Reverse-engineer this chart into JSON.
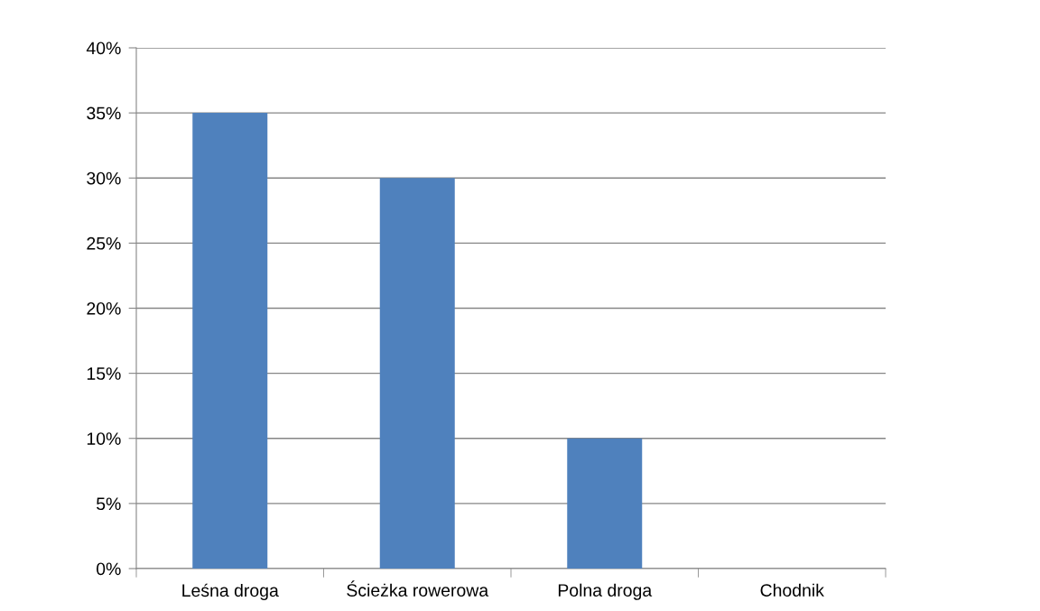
{
  "chart_data": {
    "type": "bar",
    "categories": [
      "Leśna droga",
      "Ścieżka rowerowa",
      "Polna droga",
      "Chodnik"
    ],
    "values": [
      35,
      30,
      10,
      0
    ],
    "color": "#4f81bd",
    "ylim": [
      0,
      40
    ],
    "yticks": [
      {
        "value": 0,
        "label": "0%"
      },
      {
        "value": 5,
        "label": "5%"
      },
      {
        "value": 10,
        "label": "10%"
      },
      {
        "value": 15,
        "label": "15%"
      },
      {
        "value": 20,
        "label": "20%"
      },
      {
        "value": 25,
        "label": "25%"
      },
      {
        "value": 30,
        "label": "30%"
      },
      {
        "value": 35,
        "label": "35%"
      },
      {
        "value": 40,
        "label": "40%"
      }
    ],
    "grid": "y",
    "legend": false
  }
}
